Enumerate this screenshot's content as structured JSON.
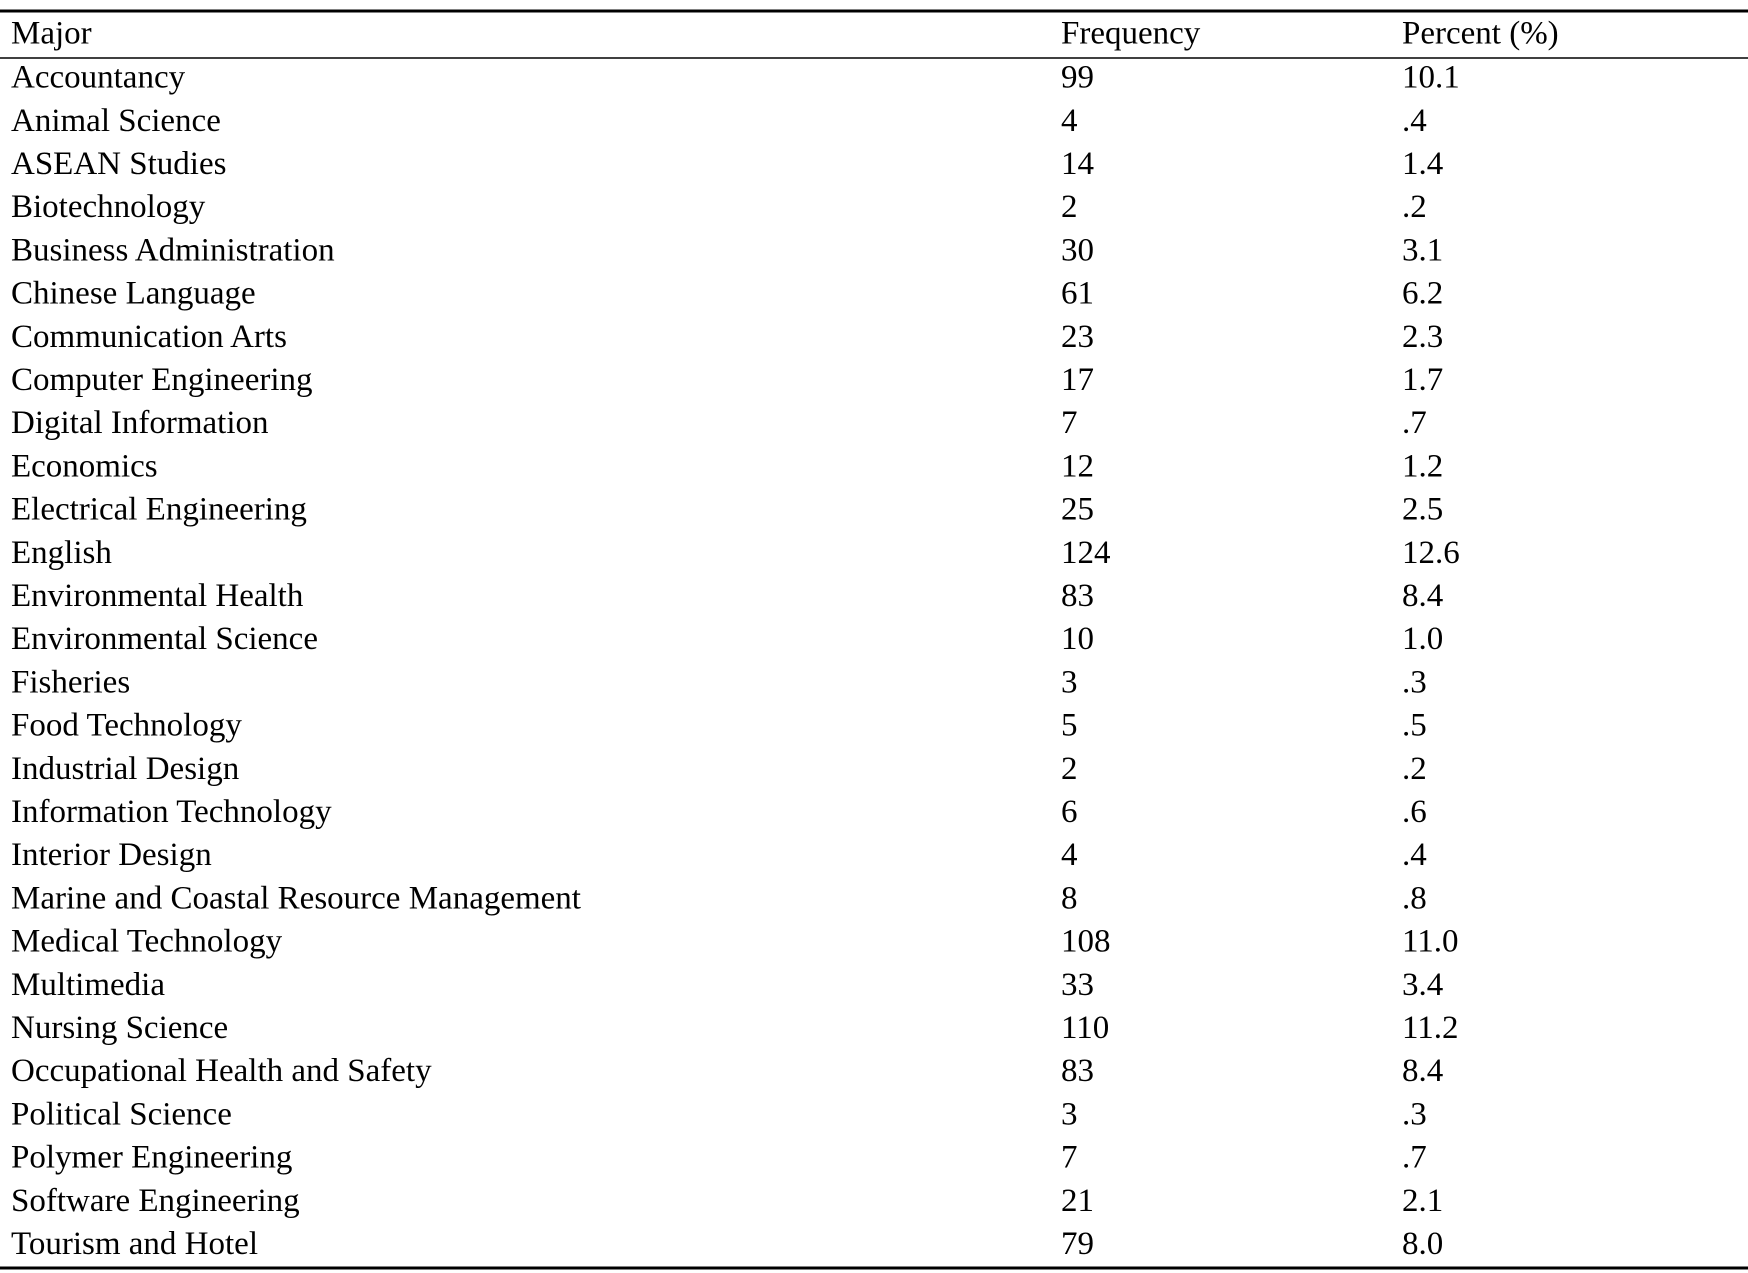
{
  "table": {
    "columns": [
      "Major",
      "Frequency",
      "Percent (%)"
    ],
    "rows": [
      [
        "Accountancy",
        99,
        "10.1"
      ],
      [
        "Animal Science",
        4,
        ".4"
      ],
      [
        "ASEAN Studies",
        14,
        "1.4"
      ],
      [
        "Biotechnology",
        2,
        ".2"
      ],
      [
        "Business Administration",
        30,
        "3.1"
      ],
      [
        "Chinese Language",
        61,
        "6.2"
      ],
      [
        "Communication Arts",
        23,
        "2.3"
      ],
      [
        "Computer Engineering",
        17,
        "1.7"
      ],
      [
        "Digital Information",
        7,
        ".7"
      ],
      [
        "Economics",
        12,
        "1.2"
      ],
      [
        "Electrical Engineering",
        25,
        "2.5"
      ],
      [
        "English",
        124,
        "12.6"
      ],
      [
        "Environmental Health",
        83,
        "8.4"
      ],
      [
        "Environmental Science",
        10,
        "1.0"
      ],
      [
        "Fisheries",
        3,
        ".3"
      ],
      [
        "Food Technology",
        5,
        ".5"
      ],
      [
        "Industrial Design",
        2,
        ".2"
      ],
      [
        "Information Technology",
        6,
        ".6"
      ],
      [
        "Interior Design",
        4,
        ".4"
      ],
      [
        "Marine and Coastal Resource Management",
        8,
        ".8"
      ],
      [
        "Medical Technology",
        108,
        "11.0"
      ],
      [
        "Multimedia",
        33,
        "3.4"
      ],
      [
        "Nursing Science",
        110,
        "11.2"
      ],
      [
        "Occupational Health and Safety",
        83,
        "8.4"
      ],
      [
        "Political Science",
        3,
        ".3"
      ],
      [
        "Polymer Engineering",
        7,
        ".7"
      ],
      [
        "Software Engineering",
        21,
        "2.1"
      ],
      [
        "Tourism and Hotel",
        79,
        "8.0"
      ]
    ]
  }
}
